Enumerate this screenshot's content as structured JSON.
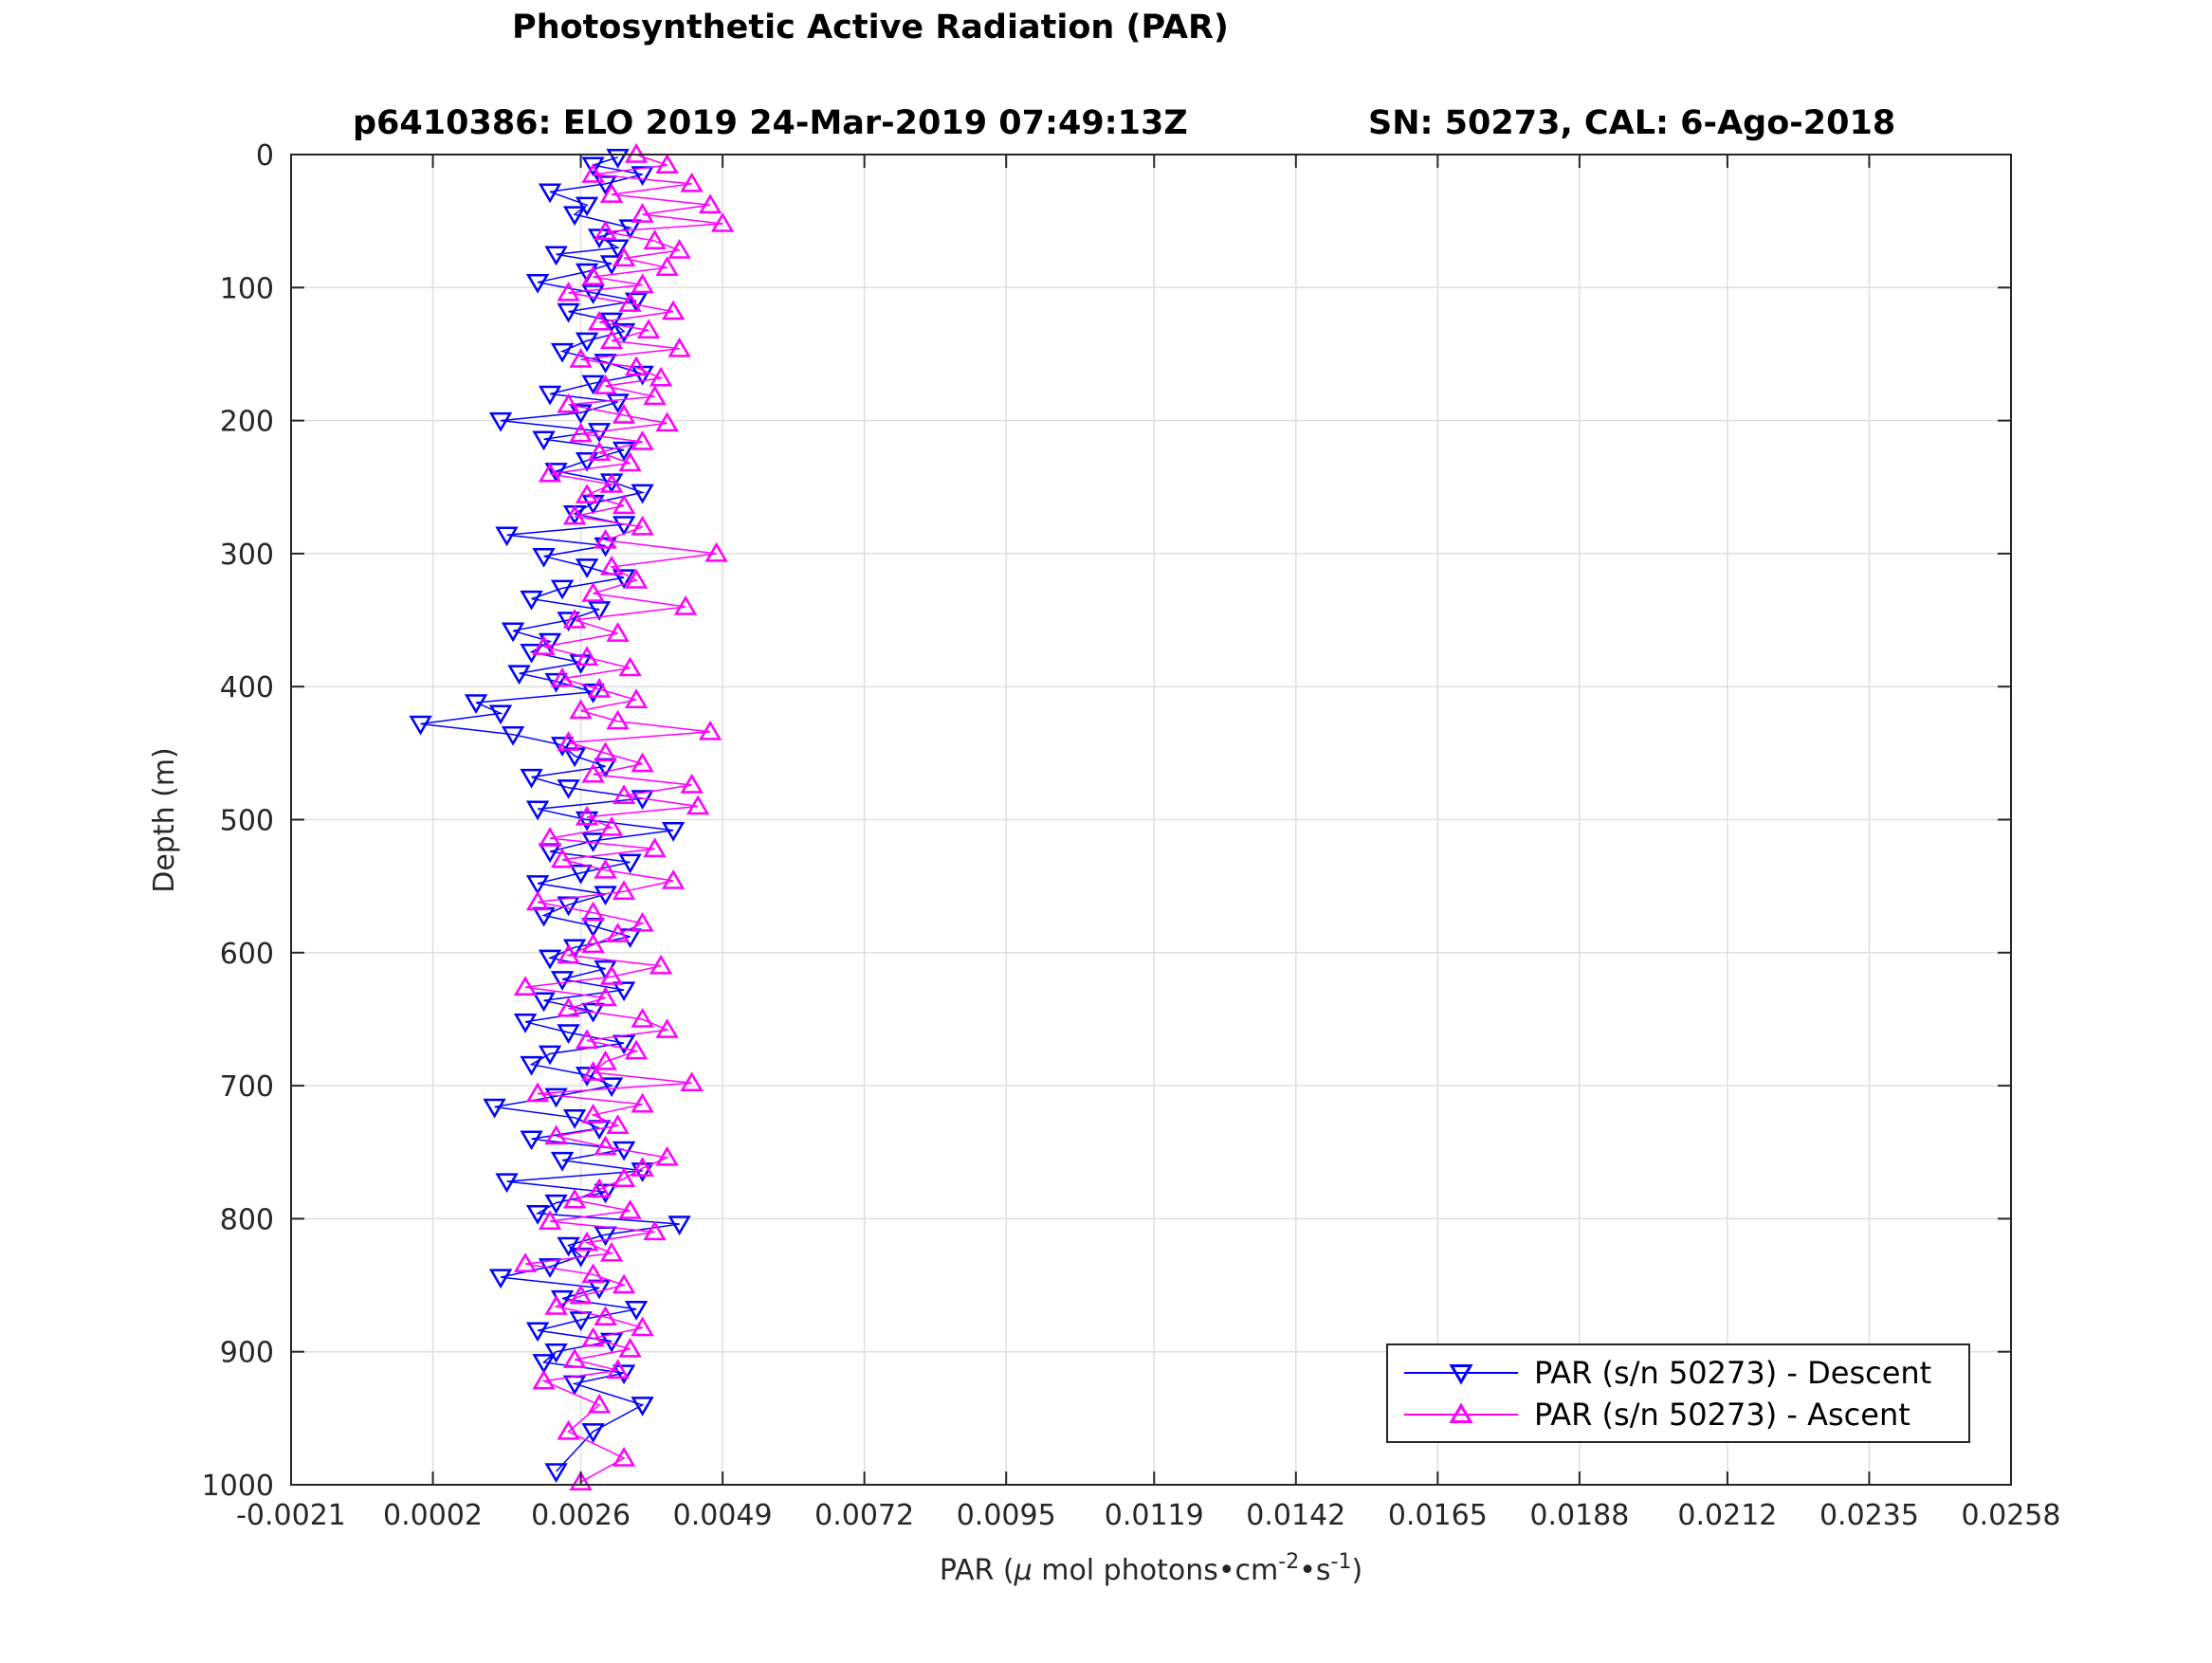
{
  "figure": {
    "title": "Photosynthetic Active Radiation (PAR)",
    "subtitle_left": "p6410386: ELO 2019 24-Mar-2019 07:49:13Z",
    "subtitle_right": "SN: 50273, CAL: 6-Ago-2018"
  },
  "chart_data": {
    "type": "line",
    "title": "Photosynthetic Active Radiation (PAR)",
    "xlabel_parts": {
      "prefix": "PAR (",
      "mu": "μ",
      "mid1": " mol photons•cm",
      "exp1": "-2",
      "mid2": "•s",
      "exp2": "-1",
      "suffix": ")"
    },
    "ylabel": "Depth (m)",
    "xlim": [
      -0.0021,
      0.0258
    ],
    "ylim": [
      1000,
      0
    ],
    "y_reversed": true,
    "xticks": [
      -0.0021,
      0.0002,
      0.0026,
      0.0049,
      0.0072,
      0.0095,
      0.0119,
      0.0142,
      0.0165,
      0.0188,
      0.0212,
      0.0235,
      0.0258
    ],
    "xtick_labels": [
      "-0.0021",
      "0.0002",
      "0.0026",
      "0.0049",
      "0.0072",
      "0.0095",
      "0.0119",
      "0.0142",
      "0.0165",
      "0.0188",
      "0.0212",
      "0.0235",
      "0.0258"
    ],
    "yticks": [
      0,
      100,
      200,
      300,
      400,
      500,
      600,
      700,
      800,
      900,
      1000
    ],
    "ytick_labels": [
      "0",
      "100",
      "200",
      "300",
      "400",
      "500",
      "600",
      "700",
      "800",
      "900",
      "1000"
    ],
    "grid": true,
    "legend_position": "bottom-right",
    "series": [
      {
        "name": "PAR (s/n 50273) - Descent",
        "color": "#0000ff",
        "marker": "triangle-down",
        "x": [
          0.0032,
          0.0028,
          0.0036,
          0.003,
          0.0021,
          0.0027,
          0.0025,
          0.0034,
          0.0029,
          0.0032,
          0.0022,
          0.0031,
          0.0027,
          0.0019,
          0.0028,
          0.0035,
          0.0024,
          0.0031,
          0.0033,
          0.0027,
          0.0023,
          0.003,
          0.0036,
          0.0028,
          0.0021,
          0.0032,
          0.0026,
          0.0013,
          0.0029,
          0.002,
          0.0033,
          0.0027,
          0.0022,
          0.0031,
          0.0036,
          0.0028,
          0.0025,
          0.0033,
          0.0014,
          0.003,
          0.002,
          0.0027,
          0.0033,
          0.0023,
          0.0018,
          0.0029,
          0.0024,
          0.0015,
          0.0021,
          0.0018,
          0.0026,
          0.0016,
          0.0022,
          0.0028,
          0.0009,
          0.0013,
          0.0,
          0.0015,
          0.0023,
          0.0025,
          0.003,
          0.0018,
          0.0024,
          0.0036,
          0.0019,
          0.0027,
          0.0041,
          0.0028,
          0.0021,
          0.0034,
          0.0026,
          0.0019,
          0.003,
          0.0024,
          0.002,
          0.0028,
          0.0034,
          0.0025,
          0.0021,
          0.003,
          0.0023,
          0.0033,
          0.002,
          0.0028,
          0.0017,
          0.0024,
          0.0033,
          0.0021,
          0.0018,
          0.0027,
          0.0031,
          0.0022,
          0.0012,
          0.0025,
          0.0029,
          0.0018,
          0.0033,
          0.0023,
          0.0036,
          0.0014,
          0.003,
          0.0022,
          0.0019,
          0.0042,
          0.003,
          0.0024,
          0.0026,
          0.0021,
          0.0013,
          0.0029,
          0.0023,
          0.0035,
          0.0026,
          0.0019,
          0.0031,
          0.0022,
          0.002,
          0.0033,
          0.0025,
          0.0036,
          0.0028,
          0.0022
        ],
        "y": [
          2,
          8,
          15,
          22,
          28,
          38,
          45,
          55,
          62,
          70,
          75,
          82,
          88,
          96,
          104,
          110,
          118,
          125,
          133,
          140,
          148,
          156,
          165,
          172,
          180,
          186,
          194,
          200,
          208,
          214,
          222,
          230,
          238,
          246,
          254,
          262,
          270,
          278,
          286,
          294,
          302,
          310,
          318,
          326,
          334,
          342,
          350,
          358,
          366,
          374,
          382,
          390,
          396,
          404,
          412,
          420,
          428,
          436,
          444,
          452,
          460,
          468,
          476,
          484,
          492,
          500,
          508,
          516,
          524,
          532,
          540,
          548,
          556,
          564,
          572,
          580,
          588,
          596,
          604,
          612,
          620,
          628,
          636,
          644,
          652,
          660,
          668,
          676,
          684,
          692,
          700,
          708,
          716,
          724,
          732,
          740,
          748,
          756,
          764,
          772,
          780,
          788,
          796,
          804,
          812,
          820,
          828,
          836,
          844,
          852,
          860,
          868,
          876,
          884,
          892,
          900,
          908,
          916,
          924,
          940,
          960,
          990
        ]
      },
      {
        "name": "PAR (s/n 50273) - Ascent",
        "color": "#ff00ff",
        "marker": "triangle-up",
        "x": [
          0.0035,
          0.004,
          0.0028,
          0.0044,
          0.0031,
          0.0047,
          0.0036,
          0.0049,
          0.003,
          0.0038,
          0.0042,
          0.0033,
          0.004,
          0.0028,
          0.0036,
          0.0024,
          0.0034,
          0.0041,
          0.0029,
          0.0037,
          0.0031,
          0.0042,
          0.0026,
          0.0035,
          0.0039,
          0.003,
          0.0038,
          0.0024,
          0.0033,
          0.004,
          0.0026,
          0.0036,
          0.0029,
          0.0034,
          0.0021,
          0.0031,
          0.0027,
          0.0033,
          0.0025,
          0.0036,
          0.003,
          0.0048,
          0.0031,
          0.0035,
          0.0028,
          0.0043,
          0.0025,
          0.0032,
          0.002,
          0.0027,
          0.0034,
          0.0023,
          0.0029,
          0.0035,
          0.0026,
          0.0032,
          0.0047,
          0.0024,
          0.003,
          0.0036,
          0.0028,
          0.0044,
          0.0033,
          0.0045,
          0.0027,
          0.0031,
          0.0021,
          0.0038,
          0.0023,
          0.003,
          0.0041,
          0.0033,
          0.0019,
          0.0028,
          0.0036,
          0.0032,
          0.0028,
          0.0024,
          0.0039,
          0.0031,
          0.0017,
          0.003,
          0.0024,
          0.0036,
          0.004,
          0.0027,
          0.0035,
          0.003,
          0.0028,
          0.0044,
          0.0019,
          0.0036,
          0.0028,
          0.0032,
          0.0022,
          0.003,
          0.004,
          0.0036,
          0.0033,
          0.0029,
          0.0025,
          0.0034,
          0.0021,
          0.0038,
          0.0027,
          0.0031,
          0.0017,
          0.0028,
          0.0033,
          0.0026,
          0.0022,
          0.003,
          0.0036,
          0.0028,
          0.0034,
          0.0025,
          0.0032,
          0.002,
          0.0029,
          0.0024,
          0.0033,
          0.0026
        ],
        "y": [
          0,
          8,
          15,
          22,
          30,
          38,
          45,
          52,
          58,
          65,
          72,
          78,
          85,
          92,
          98,
          104,
          112,
          118,
          126,
          132,
          140,
          146,
          154,
          160,
          168,
          174,
          182,
          188,
          196,
          202,
          210,
          216,
          224,
          232,
          240,
          248,
          256,
          264,
          272,
          280,
          290,
          300,
          310,
          320,
          330,
          340,
          350,
          360,
          370,
          378,
          386,
          394,
          402,
          410,
          418,
          426,
          434,
          442,
          450,
          458,
          466,
          474,
          482,
          490,
          498,
          506,
          514,
          522,
          530,
          538,
          546,
          554,
          562,
          570,
          578,
          586,
          594,
          602,
          610,
          618,
          626,
          634,
          642,
          650,
          658,
          666,
          674,
          682,
          690,
          698,
          706,
          714,
          722,
          730,
          738,
          746,
          754,
          762,
          770,
          778,
          786,
          794,
          802,
          810,
          818,
          826,
          834,
          842,
          850,
          858,
          866,
          874,
          882,
          890,
          898,
          906,
          914,
          922,
          940,
          960,
          980,
          998
        ]
      }
    ]
  }
}
